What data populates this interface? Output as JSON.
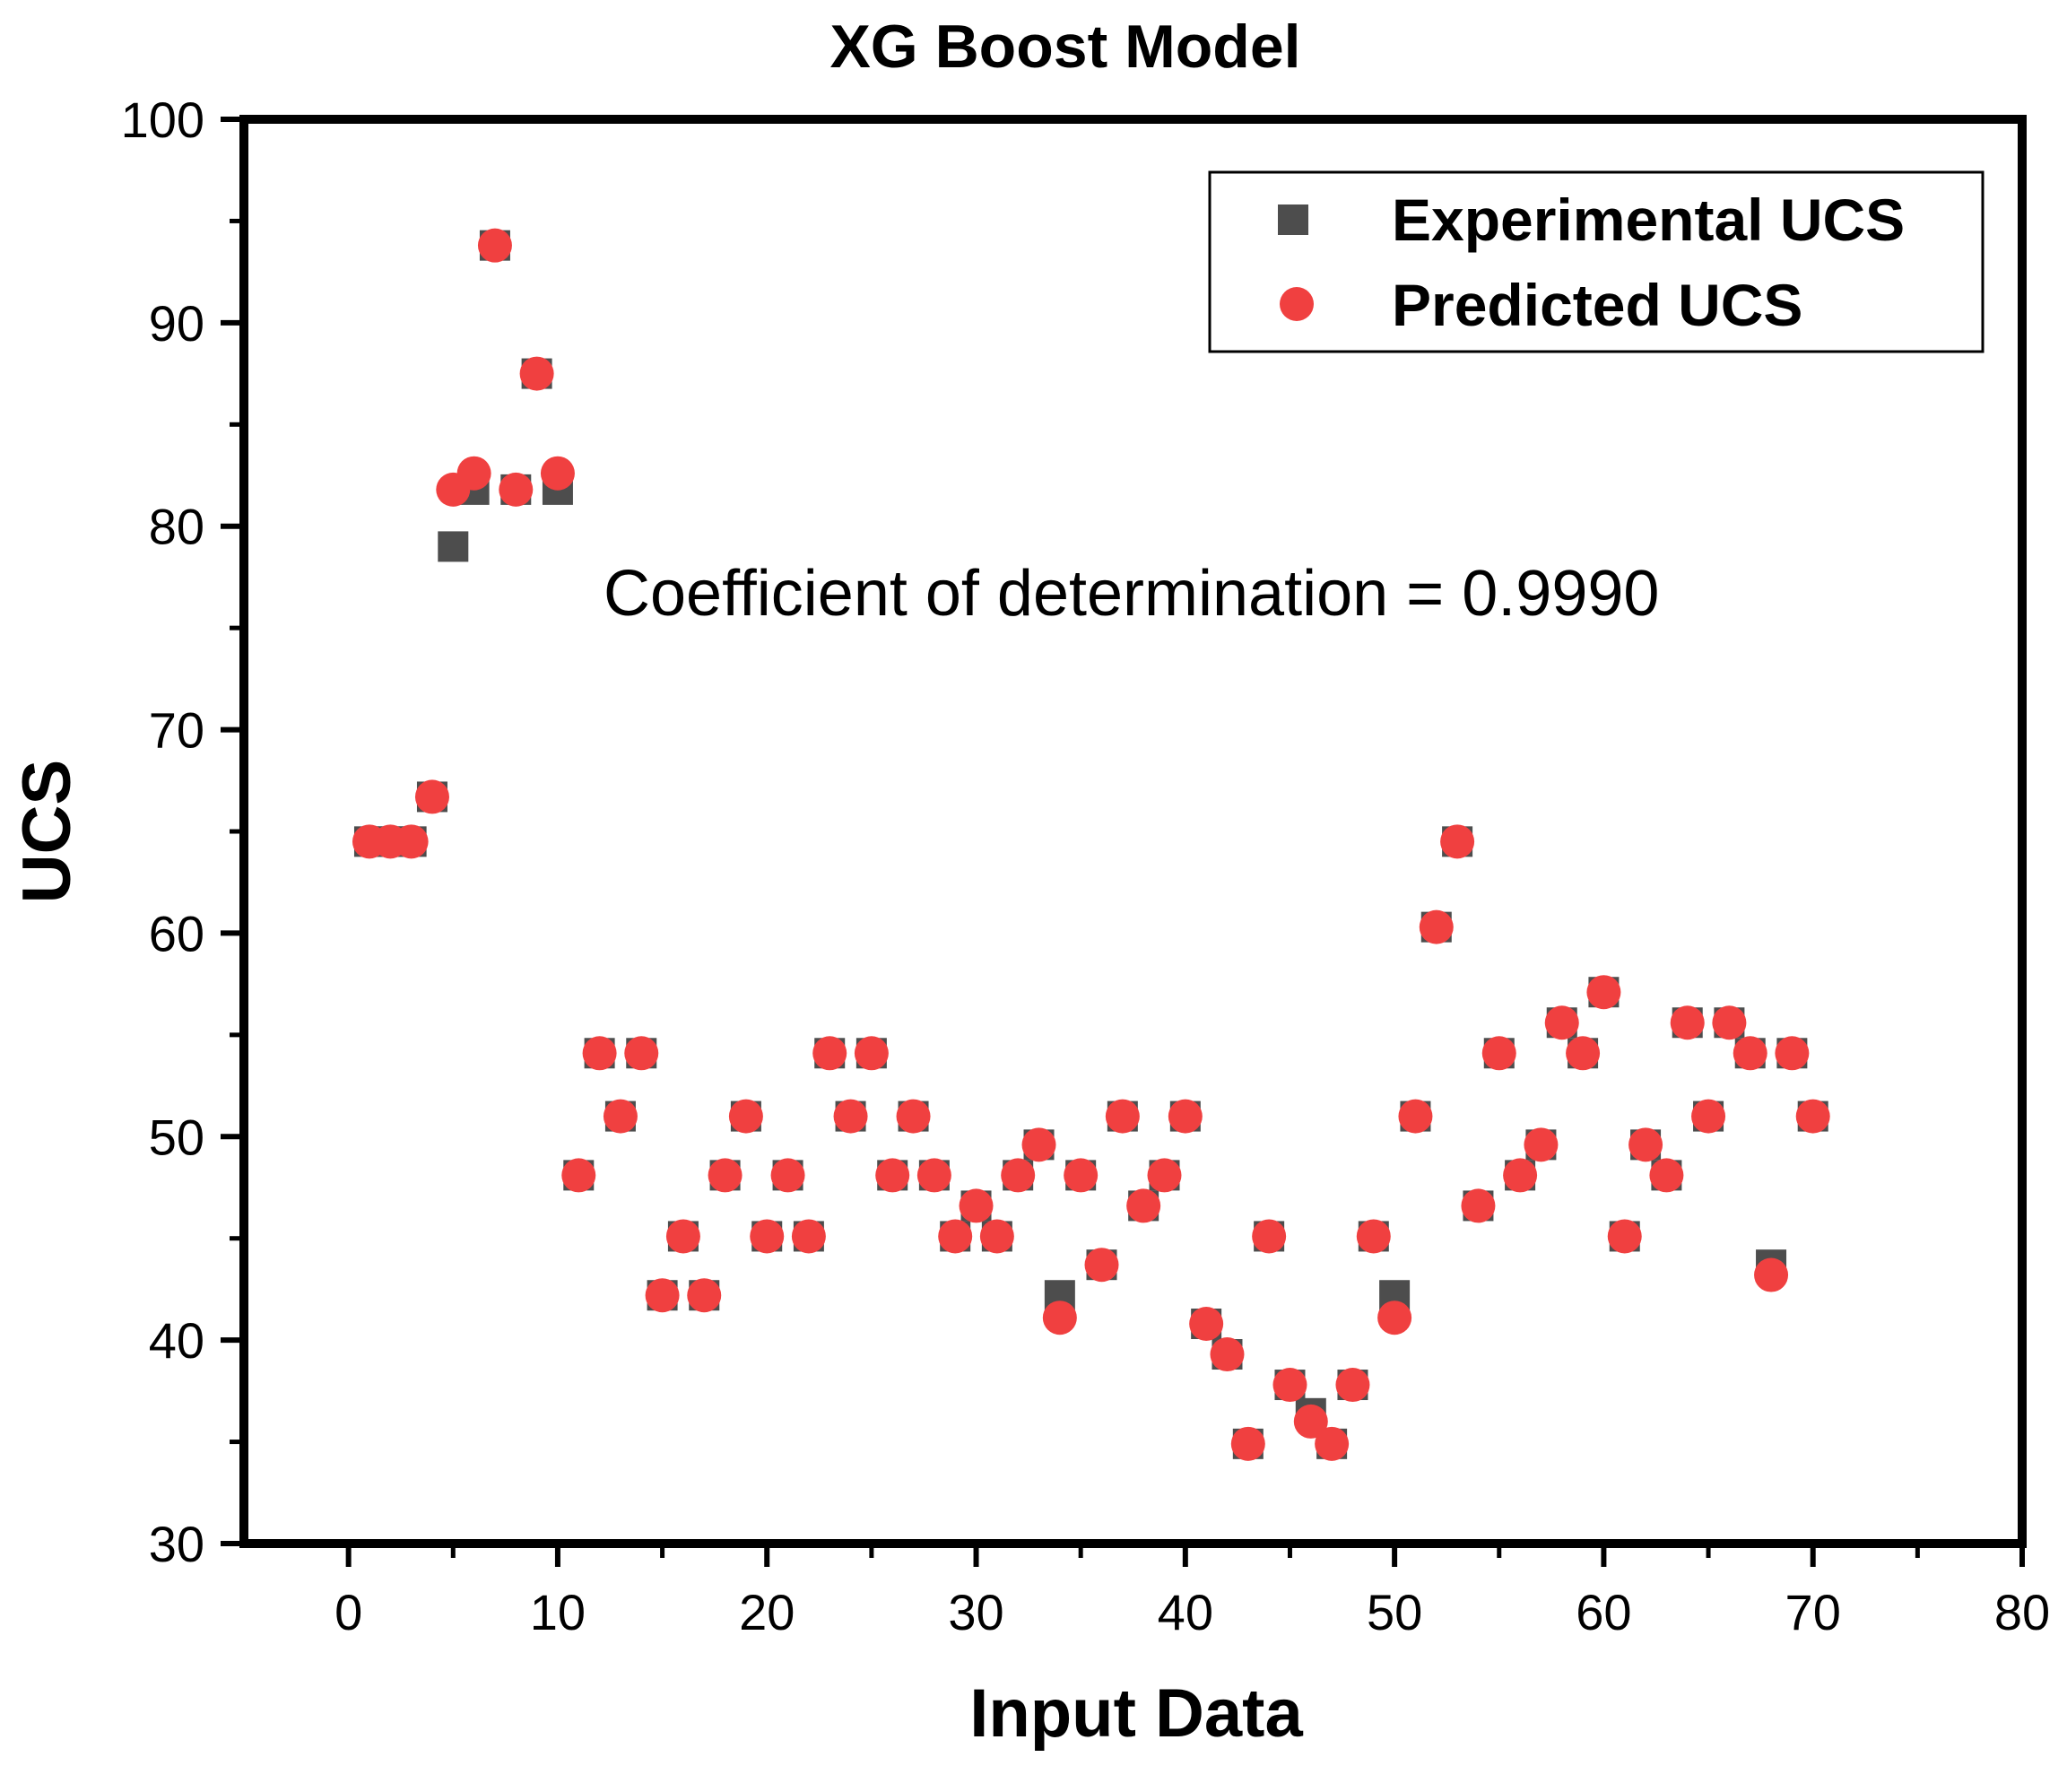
{
  "chart_data": {
    "type": "scatter",
    "title": "XG Boost Model",
    "xlabel": "Input Data",
    "ylabel": "UCS",
    "xlim": [
      -5,
      80
    ],
    "ylim": [
      30,
      100
    ],
    "xticks": [
      "0",
      "10",
      "20",
      "30",
      "40",
      "50",
      "60",
      "70",
      "80"
    ],
    "yticks": [
      "30",
      "40",
      "50",
      "60",
      "70",
      "80",
      "90",
      "100"
    ],
    "legend_position": "top-right",
    "annotation": "Coefficient of determination = 0.9990",
    "series": [
      {
        "name": "Experimental UCS",
        "marker": "square",
        "color": "#4d4d4d",
        "x": [
          1,
          2,
          3,
          4,
          5,
          6,
          7,
          8,
          9,
          10,
          11,
          12,
          13,
          14,
          15,
          16,
          17,
          18,
          19,
          20,
          21,
          22,
          23,
          24,
          25,
          26,
          27,
          28,
          29,
          30,
          31,
          32,
          33,
          34,
          35,
          36,
          37,
          38,
          39,
          40,
          41,
          42,
          43,
          44,
          45,
          46,
          47,
          48,
          49,
          50,
          51,
          52,
          53,
          54,
          55,
          56,
          57,
          58,
          59,
          60,
          61,
          62,
          63,
          64,
          65,
          66,
          67,
          68,
          69,
          70
        ],
        "y": [
          64.5,
          64.5,
          64.5,
          66.7,
          79,
          81.8,
          93.8,
          81.8,
          87.5,
          81.8,
          48.1,
          54.1,
          51,
          54.1,
          42.2,
          45.1,
          42.2,
          48.1,
          51,
          45.1,
          48.1,
          45.1,
          54.1,
          51,
          54.1,
          48.1,
          51,
          48.1,
          45.1,
          46.6,
          45.1,
          48.1,
          49.6,
          42.2,
          48.1,
          43.7,
          51,
          46.6,
          48.1,
          51,
          40.8,
          39.3,
          34.9,
          45.1,
          37.8,
          36.4,
          34.9,
          37.8,
          45.1,
          42.2,
          51,
          60.3,
          64.5,
          46.6,
          54.1,
          48.1,
          49.6,
          55.6,
          54.1,
          57.1,
          45.1,
          49.6,
          48.1,
          55.6,
          51,
          55.6,
          54.1,
          43.7,
          54.1,
          51
        ]
      },
      {
        "name": "Predicted UCS",
        "marker": "circle",
        "color": "#f04040",
        "x": [
          1,
          2,
          3,
          4,
          5,
          6,
          7,
          8,
          9,
          10,
          11,
          12,
          13,
          14,
          15,
          16,
          17,
          18,
          19,
          20,
          21,
          22,
          23,
          24,
          25,
          26,
          27,
          28,
          29,
          30,
          31,
          32,
          33,
          34,
          35,
          36,
          37,
          38,
          39,
          40,
          41,
          42,
          43,
          44,
          45,
          46,
          47,
          48,
          49,
          50,
          51,
          52,
          53,
          54,
          55,
          56,
          57,
          58,
          59,
          60,
          61,
          62,
          63,
          64,
          65,
          66,
          67,
          68,
          69,
          70
        ],
        "y": [
          64.5,
          64.5,
          64.5,
          66.7,
          81.8,
          82.6,
          93.8,
          81.8,
          87.5,
          82.6,
          48.1,
          54.1,
          51,
          54.1,
          42.2,
          45.1,
          42.2,
          48.1,
          51,
          45.1,
          48.1,
          45.1,
          54.1,
          51,
          54.1,
          48.1,
          51,
          48.1,
          45.1,
          46.6,
          45.1,
          48.1,
          49.6,
          41.1,
          48.1,
          43.7,
          51,
          46.6,
          48.1,
          51,
          40.8,
          39.3,
          34.9,
          45.1,
          37.8,
          36,
          34.9,
          37.8,
          45.1,
          41.1,
          51,
          60.3,
          64.5,
          46.6,
          54.1,
          48.1,
          49.6,
          55.6,
          54.1,
          57.1,
          45.1,
          49.6,
          48.1,
          55.6,
          51,
          55.6,
          54.1,
          43.2,
          54.1,
          51
        ]
      }
    ]
  }
}
